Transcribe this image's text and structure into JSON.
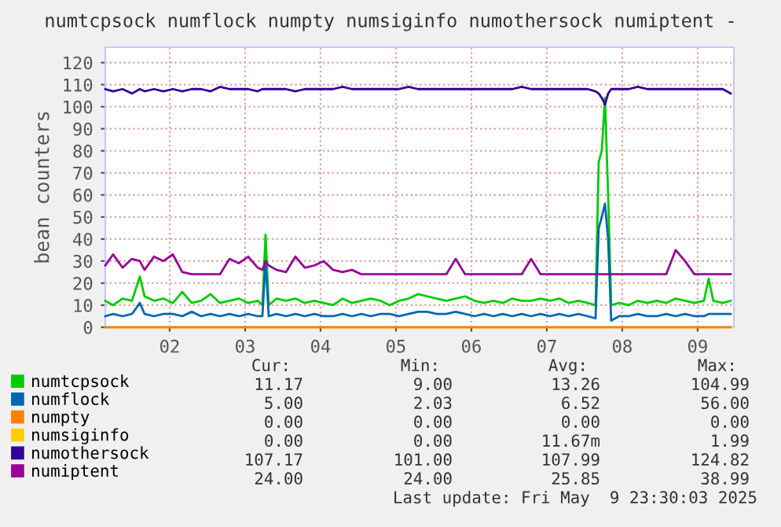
{
  "chart_data": {
    "type": "line",
    "title": "numtcpsock numflock numpty numsiginfo numothersock numiptent -",
    "ylabel": "bean counters",
    "x": [
      1.646,
      1.75,
      1.875,
      2.0,
      2.104,
      2.167,
      2.292,
      2.417,
      2.542,
      2.667,
      2.792,
      2.917,
      3.042,
      3.167,
      3.292,
      3.417,
      3.542,
      3.667,
      3.729,
      3.771,
      3.813,
      3.917,
      4.042,
      4.167,
      4.292,
      4.417,
      4.542,
      4.667,
      4.792,
      4.917,
      5.042,
      5.167,
      5.292,
      5.417,
      5.542,
      5.667,
      5.792,
      5.917,
      6.042,
      6.167,
      6.292,
      6.417,
      6.542,
      6.667,
      6.792,
      6.917,
      7.042,
      7.167,
      7.292,
      7.417,
      7.542,
      7.667,
      7.792,
      7.917,
      8.042,
      8.146,
      8.188,
      8.229,
      8.271,
      8.313,
      8.354,
      8.458,
      8.583,
      8.708,
      8.833,
      8.958,
      9.083,
      9.208,
      9.333,
      9.458,
      9.583,
      9.646,
      9.708,
      9.833,
      9.938
    ],
    "series": [
      {
        "name": "numtcpsock",
        "color": "#00cc00",
        "values": [
          12,
          10,
          13,
          12,
          23,
          14,
          12,
          13,
          11,
          16,
          11,
          12,
          15,
          11,
          12,
          13,
          11,
          12,
          10,
          42,
          10,
          13,
          12,
          13,
          11,
          12,
          11,
          10,
          13,
          11,
          12,
          13,
          12,
          10,
          12,
          13,
          15,
          14,
          13,
          12,
          13,
          14,
          12,
          11,
          12,
          11,
          13,
          12,
          12,
          13,
          12,
          13,
          11,
          12,
          11,
          10,
          75,
          80,
          104,
          60,
          10,
          11,
          10,
          12,
          11,
          12,
          11,
          13,
          12,
          11,
          12,
          22,
          12,
          11,
          12
        ]
      },
      {
        "name": "numflock",
        "color": "#0066b3",
        "values": [
          5,
          6,
          5,
          6,
          11,
          6,
          5,
          6,
          6,
          5,
          7,
          5,
          6,
          5,
          6,
          5,
          6,
          5,
          5,
          30,
          5,
          6,
          5,
          6,
          5,
          6,
          5,
          5,
          6,
          5,
          6,
          5,
          6,
          6,
          5,
          6,
          7,
          7,
          6,
          6,
          7,
          6,
          5,
          6,
          5,
          6,
          5,
          6,
          5,
          6,
          5,
          6,
          5,
          6,
          5,
          4,
          45,
          50,
          56,
          40,
          3,
          5,
          5,
          6,
          5,
          5,
          6,
          5,
          6,
          5,
          5,
          6,
          6,
          6,
          6
        ]
      },
      {
        "name": "numpty",
        "color": "#ff8000",
        "values": [
          0,
          0,
          0,
          0,
          0,
          0,
          0,
          0,
          0,
          0,
          0,
          0,
          0,
          0,
          0,
          0,
          0,
          0,
          0,
          0,
          0,
          0,
          0,
          0,
          0,
          0,
          0,
          0,
          0,
          0,
          0,
          0,
          0,
          0,
          0,
          0,
          0,
          0,
          0,
          0,
          0,
          0,
          0,
          0,
          0,
          0,
          0,
          0,
          0,
          0,
          0,
          0,
          0,
          0,
          0,
          0,
          0,
          0,
          0,
          0,
          0,
          0,
          0,
          0,
          0,
          0,
          0,
          0,
          0,
          0,
          0,
          0,
          0,
          0,
          0
        ]
      },
      {
        "name": "numsiginfo",
        "color": "#ffcc00",
        "values": [
          null,
          null,
          null,
          null,
          null,
          null,
          null,
          null,
          null,
          null,
          null,
          null,
          null,
          null,
          null,
          null,
          null,
          null,
          null,
          null,
          null,
          null,
          null,
          null,
          null,
          null,
          null,
          null,
          null,
          null,
          null,
          null,
          null,
          null,
          null,
          null,
          null,
          null,
          null,
          null,
          null,
          null,
          null,
          null,
          null,
          null,
          null,
          null,
          null,
          null,
          null,
          null,
          null,
          null,
          null,
          null,
          null,
          null,
          null,
          null,
          null,
          null,
          null,
          null,
          null,
          null,
          null,
          null,
          null,
          null,
          null,
          null,
          null,
          null,
          null
        ]
      },
      {
        "name": "numothersock",
        "color": "#330099",
        "values": [
          108,
          107,
          108,
          106,
          108,
          107,
          108,
          107,
          108,
          107,
          108,
          108,
          107,
          109,
          108,
          108,
          108,
          107,
          108,
          108,
          108,
          108,
          108,
          107,
          108,
          108,
          108,
          108,
          109,
          108,
          108,
          108,
          108,
          108,
          108,
          109,
          108,
          108,
          108,
          108,
          108,
          108,
          108,
          108,
          108,
          108,
          108,
          109,
          108,
          108,
          108,
          108,
          108,
          108,
          108,
          107,
          106,
          104,
          101,
          106,
          108,
          108,
          108,
          109,
          108,
          108,
          108,
          108,
          108,
          108,
          108,
          108,
          108,
          108,
          106
        ]
      },
      {
        "name": "numiptent",
        "color": "#990099",
        "values": [
          28,
          33,
          27,
          31,
          30,
          26,
          32,
          30,
          33,
          25,
          24,
          24,
          24,
          24,
          31,
          29,
          32,
          27,
          26,
          30,
          28,
          26,
          25,
          32,
          27,
          28,
          30,
          26,
          25,
          26,
          24,
          24,
          24,
          24,
          24,
          24,
          24,
          24,
          24,
          24,
          31,
          24,
          24,
          24,
          24,
          24,
          24,
          24,
          31,
          24,
          24,
          24,
          24,
          24,
          24,
          24,
          24,
          24,
          24,
          24,
          24,
          24,
          24,
          24,
          24,
          24,
          24,
          35,
          30,
          24,
          24,
          24,
          24,
          24,
          24
        ]
      }
    ],
    "xlim": [
      1.646,
      9.98
    ],
    "ylim": [
      0,
      127
    ],
    "xticks": [
      {
        "value": 2.5,
        "label": "02"
      },
      {
        "value": 3.5,
        "label": "03"
      },
      {
        "value": 4.5,
        "label": "04"
      },
      {
        "value": 5.5,
        "label": "05"
      },
      {
        "value": 6.5,
        "label": "06"
      },
      {
        "value": 7.5,
        "label": "07"
      },
      {
        "value": 8.5,
        "label": "08"
      },
      {
        "value": 9.5,
        "label": "09"
      }
    ],
    "yticks": [
      0,
      10,
      20,
      30,
      40,
      50,
      60,
      70,
      80,
      90,
      100,
      110,
      120
    ],
    "grid": true,
    "legend": "bottom",
    "marker": "none",
    "line_style": "solid",
    "annotations": [
      "Cur:",
      "Min:",
      "Avg:",
      "Max:",
      "11.17",
      "9.00",
      "13.26",
      "104.99",
      "5.00",
      "2.03",
      "6.52",
      "56.00",
      "0.00",
      "0.00",
      "0.00",
      "0.00",
      "0.00",
      "0.00",
      "11.67m",
      "1.99",
      "107.17",
      "101.00",
      "107.99",
      "124.82",
      "24.00",
      "24.00",
      "25.85",
      "38.99",
      "Last update: Fri May  9 23:30:03 2025"
    ]
  }
}
